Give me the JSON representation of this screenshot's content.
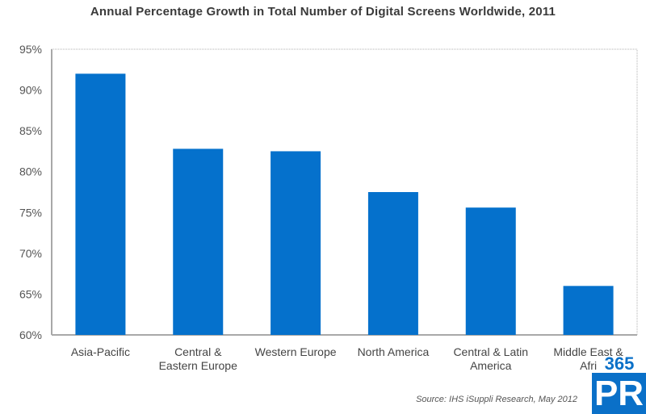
{
  "chart_data": {
    "type": "bar",
    "title": "Annual Percentage Growth in Total Number of Digital Screens Worldwide, 2011",
    "xlabel": "",
    "ylabel": "",
    "categories": [
      "Asia-Pacific",
      "Central & Eastern Europe",
      "Western Europe",
      "North America",
      "Central & Latin America",
      "Middle East & Africa"
    ],
    "category_label_lines": [
      [
        "Asia-Pacific"
      ],
      [
        "Central &",
        "Eastern Europe"
      ],
      [
        "Western Europe"
      ],
      [
        "North America"
      ],
      [
        "Central & Latin",
        "America"
      ],
      [
        "Middle East &",
        "Afri"
      ]
    ],
    "values": [
      92.0,
      82.8,
      82.5,
      77.5,
      75.6,
      66.0
    ],
    "unit": "%",
    "ylim": [
      60,
      95
    ],
    "yticks": [
      60,
      65,
      70,
      75,
      80,
      85,
      90,
      95
    ],
    "ytick_labels": [
      "60%",
      "65%",
      "70%",
      "75%",
      "80%",
      "85%",
      "90%",
      "95%"
    ],
    "grid": false,
    "legend": "none",
    "bar_color": "#0571cc",
    "source": "Source: IHS iSuppli Research, May 2012"
  },
  "watermark": {
    "number": "365",
    "letters": "PR",
    "color": "#0a70c8"
  }
}
